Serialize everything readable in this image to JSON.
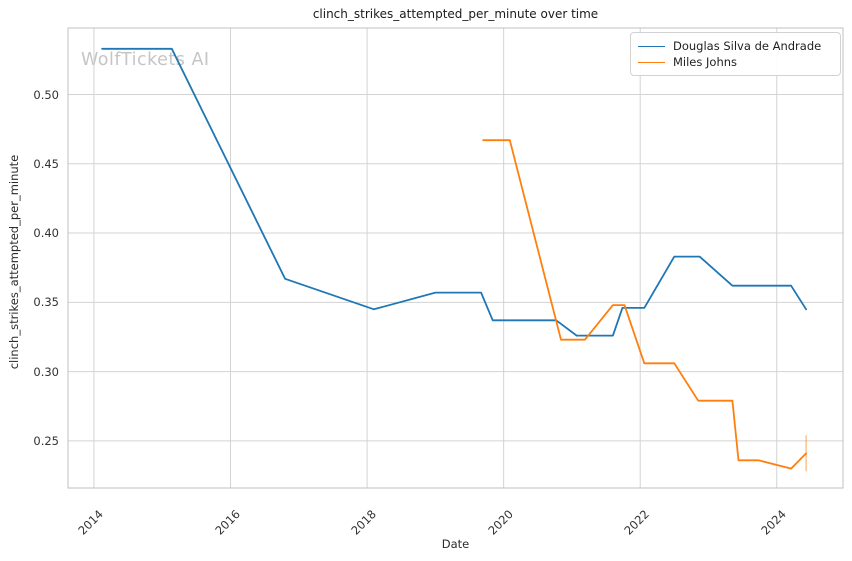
{
  "watermark": "WolfTickets AI",
  "legend": {
    "items": [
      {
        "label": "Douglas Silva de Andrade",
        "color": "#1f77b4"
      },
      {
        "label": "Miles Johns",
        "color": "#ff7f0e"
      }
    ]
  },
  "colors": {
    "grid": "#d3d3d3",
    "spine": "#c0c0c0",
    "background": "#ffffff",
    "series_blue": "#1f77b4",
    "series_orange": "#ff7f0e",
    "error_bar": "rgba(255,127,14,0.45)"
  },
  "chart_data": {
    "type": "line",
    "title": "clinch_strikes_attempted_per_minute over time",
    "xlabel": "Date",
    "ylabel": "clinch_strikes_attempted_per_minute",
    "grid": true,
    "legend_position": "upper right",
    "x_ticks": [
      2014,
      2016,
      2018,
      2020,
      2022,
      2024
    ],
    "y_ticks": [
      0.25,
      0.3,
      0.35,
      0.4,
      0.45,
      0.5
    ],
    "xlim": [
      2013.62,
      2024.97
    ],
    "ylim": [
      0.216,
      0.548
    ],
    "series": [
      {
        "name": "Douglas Silva de Andrade",
        "color": "#1f77b4",
        "points": [
          [
            2014.12,
            0.533
          ],
          [
            2015.14,
            0.533
          ],
          [
            2016.8,
            0.367
          ],
          [
            2018.1,
            0.345
          ],
          [
            2019.0,
            0.357
          ],
          [
            2019.67,
            0.357
          ],
          [
            2019.84,
            0.337
          ],
          [
            2020.77,
            0.337
          ],
          [
            2021.07,
            0.326
          ],
          [
            2021.6,
            0.326
          ],
          [
            2021.74,
            0.346
          ],
          [
            2022.06,
            0.346
          ],
          [
            2022.5,
            0.383
          ],
          [
            2022.87,
            0.383
          ],
          [
            2023.35,
            0.362
          ],
          [
            2024.21,
            0.362
          ],
          [
            2024.43,
            0.345
          ]
        ]
      },
      {
        "name": "Miles Johns",
        "color": "#ff7f0e",
        "points": [
          [
            2019.7,
            0.467
          ],
          [
            2020.09,
            0.467
          ],
          [
            2020.84,
            0.323
          ],
          [
            2021.19,
            0.323
          ],
          [
            2021.6,
            0.348
          ],
          [
            2021.77,
            0.348
          ],
          [
            2022.06,
            0.306
          ],
          [
            2022.5,
            0.306
          ],
          [
            2022.85,
            0.279
          ],
          [
            2023.35,
            0.279
          ],
          [
            2023.44,
            0.236
          ],
          [
            2023.73,
            0.236
          ],
          [
            2024.21,
            0.23
          ],
          [
            2024.43,
            0.241
          ]
        ],
        "error_bar": {
          "x": 2024.43,
          "low": 0.228,
          "high": 0.254
        }
      }
    ]
  }
}
